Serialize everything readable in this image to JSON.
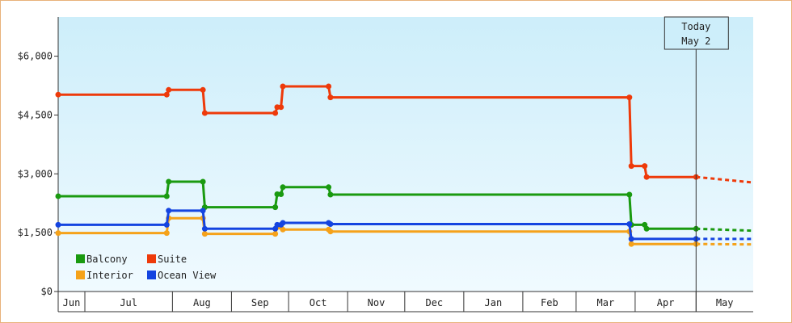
{
  "chart_data": {
    "type": "line",
    "title": "",
    "xlabel": "",
    "ylabel": "",
    "ylim": [
      0,
      7000
    ],
    "y_ticks": [
      0,
      1500,
      3000,
      4500,
      6000
    ],
    "y_tick_labels": [
      "$0",
      "$1,500",
      "$3,000",
      "$4,500",
      "$6,000"
    ],
    "x_range": [
      "2020-06-01",
      "2021-06-01"
    ],
    "months": [
      {
        "label": "Jun",
        "start": "2020-06-01",
        "end": "2020-06-15"
      },
      {
        "label": "Jul",
        "start": "2020-06-15",
        "end": "2020-07-31"
      },
      {
        "label": "Aug",
        "start": "2020-07-31",
        "end": "2020-08-31"
      },
      {
        "label": "Sep",
        "start": "2020-08-31",
        "end": "2020-09-30"
      },
      {
        "label": "Oct",
        "start": "2020-09-30",
        "end": "2020-10-31"
      },
      {
        "label": "Nov",
        "start": "2020-10-31",
        "end": "2020-11-30"
      },
      {
        "label": "Dec",
        "start": "2020-11-30",
        "end": "2020-12-31"
      },
      {
        "label": "Jan",
        "start": "2020-12-31",
        "end": "2021-01-31"
      },
      {
        "label": "Feb",
        "start": "2021-01-31",
        "end": "2021-02-28"
      },
      {
        "label": "Mar",
        "start": "2021-02-28",
        "end": "2021-03-31"
      },
      {
        "label": "Apr",
        "start": "2021-03-31",
        "end": "2021-05-02"
      },
      {
        "label": "May",
        "start": "2021-05-02",
        "end": "2021-06-01"
      }
    ],
    "today_marker": {
      "line1": "Today",
      "line2": "May 2",
      "date": "2021-05-02"
    },
    "grid": false,
    "legend_position": "bottom-left",
    "colors": {
      "background_top": "#cdeefa",
      "background_bottom": "#f0faff",
      "frame_border": "#e8b27a"
    },
    "series": [
      {
        "name": "Balcony",
        "color": "#1a9a10",
        "points": [
          [
            "2020-06-01",
            2430
          ],
          [
            "2020-07-28",
            2430
          ],
          [
            "2020-07-29",
            2800
          ],
          [
            "2020-08-16",
            2800
          ],
          [
            "2020-08-17",
            2150
          ],
          [
            "2020-09-23",
            2150
          ],
          [
            "2020-09-24",
            2480
          ],
          [
            "2020-09-26",
            2480
          ],
          [
            "2020-09-27",
            2660
          ],
          [
            "2020-10-21",
            2660
          ],
          [
            "2020-10-22",
            2470
          ],
          [
            "2021-03-28",
            2470
          ],
          [
            "2021-03-29",
            1700
          ],
          [
            "2021-04-05",
            1700
          ],
          [
            "2021-04-06",
            1600
          ],
          [
            "2021-05-02",
            1600
          ]
        ],
        "forecast": [
          [
            "2021-05-02",
            1600
          ],
          [
            "2021-06-01",
            1550
          ]
        ]
      },
      {
        "name": "Suite",
        "color": "#ee3a0a",
        "points": [
          [
            "2020-06-01",
            5020
          ],
          [
            "2020-07-28",
            5020
          ],
          [
            "2020-07-29",
            5140
          ],
          [
            "2020-08-16",
            5140
          ],
          [
            "2020-08-17",
            4550
          ],
          [
            "2020-09-23",
            4550
          ],
          [
            "2020-09-24",
            4700
          ],
          [
            "2020-09-26",
            4700
          ],
          [
            "2020-09-27",
            5230
          ],
          [
            "2020-10-21",
            5230
          ],
          [
            "2020-10-22",
            4950
          ],
          [
            "2021-03-28",
            4950
          ],
          [
            "2021-03-29",
            3200
          ],
          [
            "2021-04-05",
            3200
          ],
          [
            "2021-04-06",
            2920
          ],
          [
            "2021-05-02",
            2920
          ]
        ],
        "forecast": [
          [
            "2021-05-02",
            2920
          ],
          [
            "2021-06-01",
            2780
          ]
        ]
      },
      {
        "name": "Interior",
        "color": "#f5a21a",
        "points": [
          [
            "2020-06-01",
            1490
          ],
          [
            "2020-07-28",
            1490
          ],
          [
            "2020-07-29",
            1870
          ],
          [
            "2020-08-16",
            1870
          ],
          [
            "2020-08-17",
            1470
          ],
          [
            "2020-09-23",
            1470
          ],
          [
            "2020-09-24",
            1640
          ],
          [
            "2020-09-26",
            1640
          ],
          [
            "2020-09-27",
            1580
          ],
          [
            "2020-10-21",
            1580
          ],
          [
            "2020-10-22",
            1530
          ],
          [
            "2021-03-28",
            1530
          ],
          [
            "2021-03-29",
            1210
          ],
          [
            "2021-05-02",
            1210
          ]
        ],
        "forecast": [
          [
            "2021-05-02",
            1210
          ],
          [
            "2021-06-01",
            1200
          ]
        ]
      },
      {
        "name": "Ocean View",
        "color": "#1444e0",
        "points": [
          [
            "2020-06-01",
            1700
          ],
          [
            "2020-07-28",
            1700
          ],
          [
            "2020-07-29",
            2060
          ],
          [
            "2020-08-16",
            2060
          ],
          [
            "2020-08-17",
            1600
          ],
          [
            "2020-09-23",
            1600
          ],
          [
            "2020-09-24",
            1700
          ],
          [
            "2020-09-26",
            1700
          ],
          [
            "2020-09-27",
            1750
          ],
          [
            "2020-10-21",
            1750
          ],
          [
            "2020-10-22",
            1720
          ],
          [
            "2021-03-28",
            1720
          ],
          [
            "2021-03-29",
            1340
          ],
          [
            "2021-05-02",
            1340
          ]
        ],
        "forecast": [
          [
            "2021-05-02",
            1340
          ],
          [
            "2021-06-01",
            1340
          ]
        ]
      }
    ]
  }
}
